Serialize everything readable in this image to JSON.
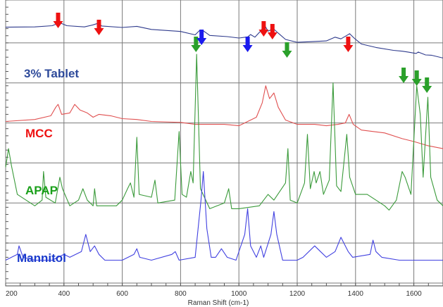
{
  "chart_data": {
    "type": "line",
    "xlabel": "Raman Shift (cm-1)",
    "xlim": [
      200,
      1700
    ],
    "x_ticks": [
      "200",
      "400",
      "600",
      "800",
      "1000",
      "1200",
      "1400",
      "1600"
    ],
    "grid": true,
    "series": [
      {
        "name": "3% Tablet",
        "color": "#2e3a8c",
        "label_color": "#2e4a9a",
        "points": [
          [
            200,
            0.5
          ],
          [
            300,
            0.6
          ],
          [
            360,
            1.0
          ],
          [
            385,
            2.1
          ],
          [
            410,
            1.0
          ],
          [
            470,
            0.6
          ],
          [
            500,
            1.3
          ],
          [
            515,
            1.8
          ],
          [
            530,
            0.9
          ],
          [
            600,
            0.4
          ],
          [
            650,
            0.8
          ],
          [
            700,
            -0.3
          ],
          [
            800,
            -1.0
          ],
          [
            850,
            -2.2
          ],
          [
            865,
            -0.7
          ],
          [
            880,
            -0.9
          ],
          [
            900,
            -2.4
          ],
          [
            960,
            -2.8
          ],
          [
            1000,
            -3.3
          ],
          [
            1030,
            -2.9
          ],
          [
            1040,
            -2.1
          ],
          [
            1055,
            -3.0
          ],
          [
            1075,
            -0.8
          ],
          [
            1088,
            1.2
          ],
          [
            1100,
            -0.9
          ],
          [
            1118,
            0.0
          ],
          [
            1135,
            -1.6
          ],
          [
            1160,
            -3.8
          ],
          [
            1200,
            -4.8
          ],
          [
            1240,
            -4.6
          ],
          [
            1300,
            -4.3
          ],
          [
            1330,
            -3.0
          ],
          [
            1350,
            -3.6
          ],
          [
            1370,
            -2.4
          ],
          [
            1380,
            -1.8
          ],
          [
            1395,
            -3.3
          ],
          [
            1420,
            -5.4
          ],
          [
            1470,
            -6.6
          ],
          [
            1530,
            -7.6
          ],
          [
            1560,
            -7.9
          ],
          [
            1580,
            -8.2
          ],
          [
            1608,
            -8.7
          ],
          [
            1615,
            -8.2
          ],
          [
            1640,
            -9.2
          ],
          [
            1660,
            -9.3
          ],
          [
            1700,
            -10.3
          ]
        ]
      },
      {
        "name": "MCC",
        "color": "#e05050",
        "label_color": "#ee1111",
        "points": [
          [
            200,
            -32.5
          ],
          [
            300,
            -31.8
          ],
          [
            355,
            -30.5
          ],
          [
            372,
            -27.5
          ],
          [
            380,
            -26.5
          ],
          [
            392,
            -30.0
          ],
          [
            420,
            -29.5
          ],
          [
            437,
            -26.5
          ],
          [
            455,
            -28.5
          ],
          [
            480,
            -29.5
          ],
          [
            500,
            -31.0
          ],
          [
            520,
            -30.0
          ],
          [
            560,
            -30.5
          ],
          [
            600,
            -31.5
          ],
          [
            650,
            -31.8
          ],
          [
            700,
            -32.5
          ],
          [
            800,
            -32.8
          ],
          [
            850,
            -33.5
          ],
          [
            900,
            -33.5
          ],
          [
            950,
            -33.5
          ],
          [
            1000,
            -34.0
          ],
          [
            1040,
            -32.0
          ],
          [
            1060,
            -31.0
          ],
          [
            1080,
            -26.0
          ],
          [
            1092,
            -20.0
          ],
          [
            1105,
            -24.5
          ],
          [
            1120,
            -22.5
          ],
          [
            1135,
            -27.5
          ],
          [
            1160,
            -32.0
          ],
          [
            1200,
            -33.5
          ],
          [
            1260,
            -33.5
          ],
          [
            1300,
            -34.0
          ],
          [
            1340,
            -33.5
          ],
          [
            1365,
            -33.0
          ],
          [
            1378,
            -30.0
          ],
          [
            1392,
            -33.5
          ],
          [
            1420,
            -35.5
          ],
          [
            1500,
            -36.5
          ],
          [
            1560,
            -38.5
          ],
          [
            1600,
            -39.5
          ],
          [
            1650,
            -41.0
          ],
          [
            1700,
            -42.0
          ]
        ]
      },
      {
        "name": "APAP",
        "color": "#3a9a3a",
        "label_color": "#1aa01a",
        "points": [
          [
            200,
            -48.5
          ],
          [
            210,
            -42.0
          ],
          [
            220,
            -48.0
          ],
          [
            240,
            -58.0
          ],
          [
            300,
            -62.0
          ],
          [
            325,
            -60.0
          ],
          [
            330,
            -50.0
          ],
          [
            338,
            -59.0
          ],
          [
            370,
            -61.0
          ],
          [
            386,
            -52.0
          ],
          [
            395,
            -56.0
          ],
          [
            420,
            -62.0
          ],
          [
            450,
            -60.0
          ],
          [
            465,
            -56.0
          ],
          [
            480,
            -60.0
          ],
          [
            500,
            -62.0
          ],
          [
            505,
            -56.0
          ],
          [
            512,
            -62.0
          ],
          [
            580,
            -62.0
          ],
          [
            600,
            -60.0
          ],
          [
            618,
            -56.0
          ],
          [
            628,
            -54.0
          ],
          [
            640,
            -59.0
          ],
          [
            650,
            -38.0
          ],
          [
            658,
            -58.0
          ],
          [
            700,
            -59.0
          ],
          [
            712,
            -53.0
          ],
          [
            722,
            -61.0
          ],
          [
            780,
            -60.0
          ],
          [
            795,
            -36.0
          ],
          [
            805,
            -58.0
          ],
          [
            820,
            -59.0
          ],
          [
            835,
            -50.0
          ],
          [
            843,
            -54.0
          ],
          [
            855,
            -9.0
          ],
          [
            868,
            -56.0
          ],
          [
            900,
            -63.0
          ],
          [
            950,
            -61.0
          ],
          [
            965,
            -56.0
          ],
          [
            975,
            -63.0
          ],
          [
            1000,
            -63.0
          ],
          [
            1070,
            -62.0
          ],
          [
            1100,
            -58.0
          ],
          [
            1120,
            -60.0
          ],
          [
            1160,
            -54.0
          ],
          [
            1168,
            -42.0
          ],
          [
            1176,
            -60.0
          ],
          [
            1200,
            -61.0
          ],
          [
            1225,
            -54.0
          ],
          [
            1235,
            -37.0
          ],
          [
            1245,
            -56.0
          ],
          [
            1258,
            -50.0
          ],
          [
            1265,
            -54.0
          ],
          [
            1278,
            -50.0
          ],
          [
            1290,
            -58.0
          ],
          [
            1310,
            -53.0
          ],
          [
            1323,
            -19.0
          ],
          [
            1335,
            -55.0
          ],
          [
            1350,
            -57.0
          ],
          [
            1370,
            -37.0
          ],
          [
            1380,
            -52.0
          ],
          [
            1400,
            -58.0
          ],
          [
            1440,
            -58.0
          ],
          [
            1500,
            -62.0
          ],
          [
            1515,
            -63.5
          ],
          [
            1540,
            -60.0
          ],
          [
            1560,
            -50.0
          ],
          [
            1570,
            -52.0
          ],
          [
            1590,
            -58.0
          ],
          [
            1610,
            -20.0
          ],
          [
            1622,
            -30.0
          ],
          [
            1632,
            -52.0
          ],
          [
            1648,
            -24.0
          ],
          [
            1658,
            -52.0
          ],
          [
            1680,
            -60.0
          ],
          [
            1700,
            -62.0
          ]
        ]
      },
      {
        "name": "Mannitol",
        "color": "#4040e0",
        "label_color": "#1a3acc",
        "points": [
          [
            200,
            -81.0
          ],
          [
            240,
            -79.0
          ],
          [
            246,
            -76.0
          ],
          [
            260,
            -80.0
          ],
          [
            300,
            -81.0
          ],
          [
            360,
            -81.0
          ],
          [
            400,
            -79.0
          ],
          [
            420,
            -80.0
          ],
          [
            460,
            -78.0
          ],
          [
            475,
            -72.0
          ],
          [
            490,
            -78.0
          ],
          [
            505,
            -76.0
          ],
          [
            520,
            -79.0
          ],
          [
            540,
            -81.0
          ],
          [
            600,
            -81.0
          ],
          [
            640,
            -79.0
          ],
          [
            650,
            -77.0
          ],
          [
            660,
            -80.0
          ],
          [
            700,
            -81.0
          ],
          [
            770,
            -79.0
          ],
          [
            782,
            -78.0
          ],
          [
            795,
            -81.0
          ],
          [
            850,
            -80.0
          ],
          [
            870,
            -60.0
          ],
          [
            878,
            -50.0
          ],
          [
            890,
            -70.0
          ],
          [
            905,
            -80.0
          ],
          [
            920,
            -80.0
          ],
          [
            940,
            -77.0
          ],
          [
            960,
            -80.0
          ],
          [
            990,
            -81.0
          ],
          [
            1020,
            -72.0
          ],
          [
            1030,
            -63.0
          ],
          [
            1040,
            -76.0
          ],
          [
            1060,
            -80.0
          ],
          [
            1075,
            -76.0
          ],
          [
            1085,
            -80.0
          ],
          [
            1110,
            -72.0
          ],
          [
            1120,
            -64.0
          ],
          [
            1130,
            -72.0
          ],
          [
            1150,
            -81.0
          ],
          [
            1200,
            -81.0
          ],
          [
            1220,
            -80.0
          ],
          [
            1260,
            -76.0
          ],
          [
            1280,
            -78.0
          ],
          [
            1300,
            -80.0
          ],
          [
            1330,
            -78.0
          ],
          [
            1350,
            -73.0
          ],
          [
            1360,
            -75.0
          ],
          [
            1375,
            -78.0
          ],
          [
            1390,
            -80.0
          ],
          [
            1450,
            -79.0
          ],
          [
            1460,
            -74.0
          ],
          [
            1470,
            -78.0
          ],
          [
            1490,
            -80.0
          ],
          [
            1550,
            -81.0
          ],
          [
            1600,
            -81.0
          ],
          [
            1650,
            -81.0
          ],
          [
            1700,
            -81.0
          ]
        ]
      }
    ],
    "annotations": [
      {
        "type": "arrow",
        "color": "red",
        "x": 380
      },
      {
        "type": "arrow",
        "color": "red",
        "x": 520
      },
      {
        "type": "arrow",
        "color": "green",
        "x": 853
      },
      {
        "type": "arrow",
        "color": "blue",
        "x": 872
      },
      {
        "type": "arrow",
        "color": "blue",
        "x": 1030
      },
      {
        "type": "arrow",
        "color": "red",
        "x": 1085
      },
      {
        "type": "arrow",
        "color": "red",
        "x": 1115
      },
      {
        "type": "arrow",
        "color": "green",
        "x": 1165
      },
      {
        "type": "arrow",
        "color": "red",
        "x": 1375
      },
      {
        "type": "arrow",
        "color": "green",
        "x": 1565
      },
      {
        "type": "arrow",
        "color": "green",
        "x": 1610
      },
      {
        "type": "arrow",
        "color": "green",
        "x": 1645
      }
    ]
  }
}
